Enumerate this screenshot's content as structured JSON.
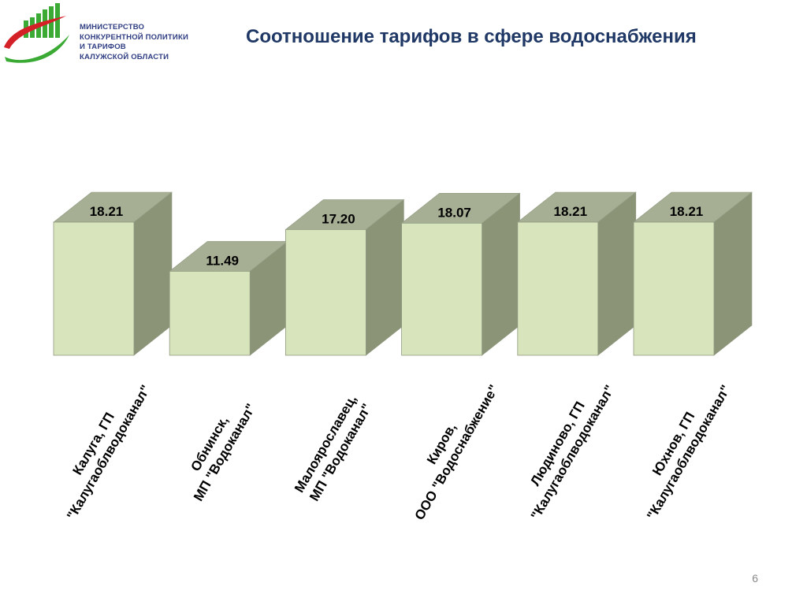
{
  "logo": {
    "lines": [
      "МИНИСТЕРСТВО",
      "КОНКУРЕНТНОЙ ПОЛИТИКИ",
      "И ТАРИФОВ",
      "КАЛУЖСКОЙ ОБЛАСТИ"
    ],
    "colors": {
      "green": "#3aaa35",
      "red": "#d42027",
      "text": "#2f3d82"
    }
  },
  "slide": {
    "title": "Соотношение тарифов в сфере водоснабжения",
    "page_number": "6"
  },
  "chart_data": {
    "type": "bar",
    "style": "3d-box",
    "categories": [
      [
        "Калуга, ГП",
        "\"Калугаоблводоканал\""
      ],
      [
        "Обнинск,",
        "МП \"Водоканал\""
      ],
      [
        "Малоярославец,",
        "МП \"Водоканал\""
      ],
      [
        "Киров,",
        "ООО \"Водоснабжение\""
      ],
      [
        "Людиново, ГП",
        "\"Калугаоблводоканал\""
      ],
      [
        "Юхнов, ГП",
        "\"Калугаоблводоканал\""
      ]
    ],
    "values": [
      18.21,
      11.49,
      17.2,
      18.07,
      18.21,
      18.21
    ],
    "value_labels": [
      "18.21",
      "11.49",
      "17.20",
      "18.07",
      "18.21",
      "18.21"
    ],
    "ylim": [
      0,
      18.21
    ],
    "grid": false,
    "legend": "none",
    "colors": {
      "front": "#d8e4bc",
      "top": "#a6ae93",
      "side": "#8c9478",
      "edge": "#8f9a80",
      "label": "#000000"
    }
  }
}
